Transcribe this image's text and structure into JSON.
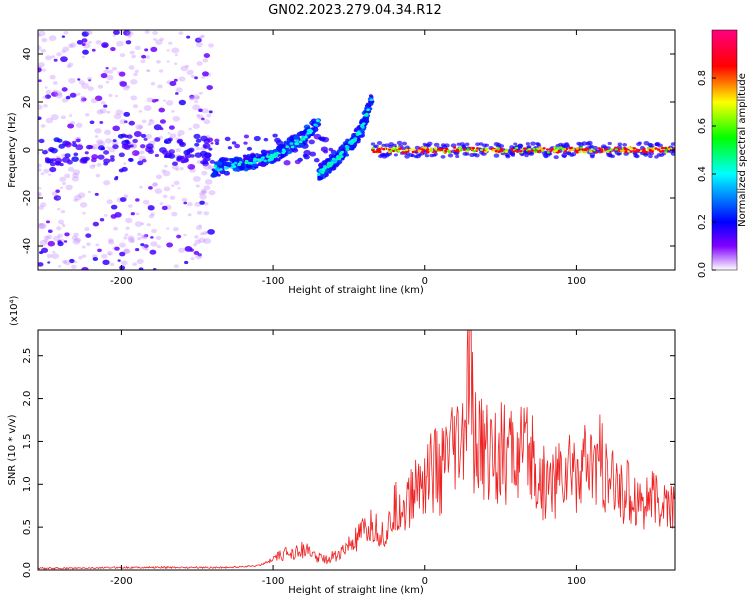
{
  "title": "GN02.2023.279.04.34.R12",
  "chart_data": [
    {
      "type": "heatmap",
      "xlabel": "Height of straight line (km)",
      "ylabel": "Frequency (Hz)",
      "xlim": [
        -255,
        165
      ],
      "ylim": [
        -50,
        50
      ],
      "x_ticks": [
        -200,
        -100,
        0,
        100
      ],
      "y_ticks": [
        -40,
        -20,
        0,
        20,
        40
      ],
      "colorbar": {
        "label": "Normalized spectral amplitude",
        "range": [
          0.0,
          1.0
        ],
        "ticks": [
          0.0,
          0.2,
          0.4,
          0.6,
          0.8
        ],
        "colors": [
          "#ffffff",
          "#8000ff",
          "#0000ff",
          "#00ffff",
          "#00ff00",
          "#ffff00",
          "#ff0000",
          "#ff0080"
        ]
      },
      "features": {
        "noise_region_x": [
          -255,
          -140
        ],
        "diffuse_band_center_hz": 0,
        "rising_track_1": {
          "x": [
            -140,
            -100,
            -80,
            -70
          ],
          "freq": [
            -8,
            -3,
            5,
            12
          ]
        },
        "rising_track_2": {
          "x": [
            -70,
            -55,
            -42,
            -35
          ],
          "freq": [
            -10,
            -2,
            8,
            22
          ]
        },
        "flat_band": {
          "x": [
            -35,
            165
          ],
          "freq": 0
        }
      }
    },
    {
      "type": "line",
      "xlabel": "Height of straight line (km)",
      "ylabel": "SNR (10 * v/v)",
      "y_multiplier": "(x10⁴)",
      "xlim": [
        -255,
        165
      ],
      "ylim": [
        0,
        2.8
      ],
      "x_ticks": [
        -200,
        -100,
        0,
        100
      ],
      "y_ticks": [
        0.0,
        0.5,
        1.0,
        1.5,
        2.0,
        2.5
      ],
      "line_color": "#ee2222",
      "series": [
        {
          "x": [
            -255,
            -230,
            -200,
            -160,
            -130,
            -110,
            -100,
            -90,
            -80,
            -75,
            -65,
            -55,
            -45,
            -35,
            -25,
            -20,
            -15,
            -10,
            -5,
            0,
            5,
            10,
            15,
            20,
            25,
            28,
            30,
            32,
            35,
            40,
            45,
            50,
            60,
            70,
            75,
            80,
            90,
            95,
            100,
            110,
            115,
            120,
            130,
            140,
            150,
            160,
            165
          ],
          "values": [
            0.02,
            0.02,
            0.03,
            0.03,
            0.03,
            0.05,
            0.12,
            0.2,
            0.25,
            0.18,
            0.12,
            0.2,
            0.35,
            0.5,
            0.4,
            0.7,
            0.75,
            0.8,
            1.0,
            1.1,
            1.2,
            1.1,
            1.3,
            1.35,
            1.45,
            1.9,
            2.7,
            1.5,
            1.45,
            1.4,
            1.4,
            1.35,
            1.35,
            1.3,
            1.05,
            1.0,
            1.1,
            1.15,
            1.2,
            1.15,
            1.3,
            1.0,
            0.95,
            0.85,
            0.8,
            0.75,
            0.7
          ]
        }
      ]
    }
  ]
}
